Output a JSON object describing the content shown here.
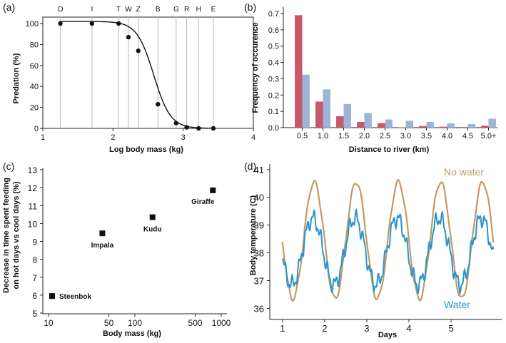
{
  "chart_data": [
    {
      "panel": "(a)",
      "type": "scatter",
      "xlabel": "Log body mass (kg)",
      "ylabel": "Predation (%)",
      "xlim": [
        1,
        4
      ],
      "ylim": [
        0,
        100
      ],
      "x_ticks": [
        "1",
        "2",
        "3",
        "4"
      ],
      "y_ticks": [
        "0",
        "20",
        "40",
        "60",
        "80",
        "100"
      ],
      "species": [
        {
          "label": "O",
          "x": 1.25
        },
        {
          "label": "I",
          "x": 1.7
        },
        {
          "label": "T",
          "x": 2.08
        },
        {
          "label": "W",
          "x": 2.22
        },
        {
          "label": "Z",
          "x": 2.36
        },
        {
          "label": "B",
          "x": 2.64
        },
        {
          "label": "G",
          "x": 2.9
        },
        {
          "label": "R",
          "x": 3.05
        },
        {
          "label": "H",
          "x": 3.22
        },
        {
          "label": "E",
          "x": 3.43
        }
      ],
      "points": [
        {
          "x": 1.25,
          "y": 100
        },
        {
          "x": 1.7,
          "y": 100
        },
        {
          "x": 2.08,
          "y": 100
        },
        {
          "x": 2.22,
          "y": 87
        },
        {
          "x": 2.36,
          "y": 74
        },
        {
          "x": 2.64,
          "y": 23
        },
        {
          "x": 2.9,
          "y": 5
        },
        {
          "x": 3.05,
          "y": 1
        },
        {
          "x": 3.22,
          "y": 0
        },
        {
          "x": 3.43,
          "y": 0
        }
      ],
      "fit_curve": {
        "type": "logistic",
        "midpoint": 2.58,
        "scale": 0.12,
        "max": 102
      }
    },
    {
      "panel": "(b)",
      "type": "bar",
      "xlabel": "Distance to river (km)",
      "ylabel": "Frequency of occurence",
      "ylim": [
        0,
        0.7
      ],
      "y_ticks": [
        "0.0",
        "0.1",
        "0.2",
        "0.3",
        "0.4",
        "0.5",
        "0.6",
        "0.7"
      ],
      "categories": [
        "0.5",
        "1.0",
        "1.5",
        "2.0",
        "2.5",
        "3.0",
        "3.5",
        "4.0",
        "4.5",
        "5.0+"
      ],
      "series": [
        {
          "name": "red",
          "color": "#c9586b",
          "values": [
            0.69,
            0.16,
            0.07,
            0.035,
            0.028,
            0.002,
            0.01,
            0.006,
            0.004,
            0.012
          ]
        },
        {
          "name": "blue",
          "color": "#9db4d8",
          "values": [
            0.325,
            0.235,
            0.145,
            0.09,
            0.05,
            0.042,
            0.035,
            0.026,
            0.022,
            0.055
          ]
        }
      ]
    },
    {
      "panel": "(c)",
      "type": "scatter",
      "x_scale": "log",
      "xlabel": "Body mass (kg)",
      "ylabel_lines": [
        "Decrease in time spent feeding",
        "on hot days vs cool days (%)"
      ],
      "xlim": [
        10,
        1000
      ],
      "ylim": [
        5,
        13
      ],
      "x_ticks": [
        "10",
        "50",
        "100",
        "500",
        "1000"
      ],
      "y_ticks": [
        "5",
        "6",
        "7",
        "8",
        "9",
        "10",
        "11",
        "12",
        "13"
      ],
      "points": [
        {
          "label": "Steenbok",
          "x": 11,
          "y": 5.95
        },
        {
          "label": "Impala",
          "x": 42,
          "y": 9.45
        },
        {
          "label": "Kudu",
          "x": 160,
          "y": 10.35
        },
        {
          "label": "Giraffe",
          "x": 800,
          "y": 11.85
        }
      ]
    },
    {
      "panel": "(d)",
      "type": "line",
      "xlabel": "Days",
      "ylabel": "Body temperature (C)",
      "xlim": [
        0.7,
        6.2
      ],
      "ylim": [
        35.6,
        41.2
      ],
      "x_ticks": [
        "1",
        "2",
        "3",
        "4",
        "5"
      ],
      "y_ticks": [
        "36",
        "37",
        "38",
        "39",
        "40",
        "41"
      ],
      "series": [
        {
          "name": "No water",
          "color": "#c49a62",
          "mean": 38.45,
          "amplitude": 2.1,
          "period_days": 1,
          "phase_peak_day": 1.75,
          "x_start": 1.0,
          "x_end": 6.0
        },
        {
          "name": "Water",
          "color": "#2a94cc",
          "mean": 38.05,
          "amplitude": 1.2,
          "period_days": 1,
          "phase_peak_day": 1.72,
          "x_start": 1.0,
          "x_end": 6.0
        }
      ]
    }
  ]
}
